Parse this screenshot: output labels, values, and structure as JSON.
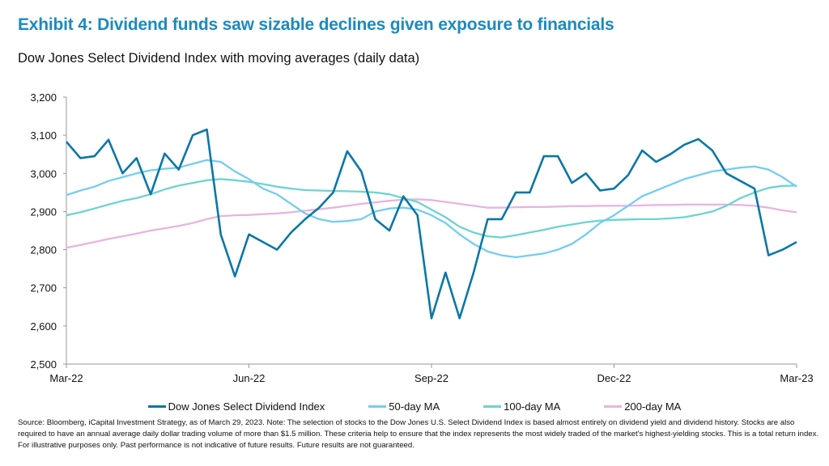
{
  "header": {
    "title": "Exhibit 4: Dividend funds saw sizable declines given exposure to financials",
    "subtitle": "Dow Jones Select Dividend Index with moving averages (daily data)"
  },
  "footnote": "Source: Bloomberg, iCapital Investment Strategy, as of March 29, 2023. Note: The selection of stocks to the Dow Jones U.S. Select Dividend Index is based almost entirely on dividend yield and dividend history. Stocks are also required to have an annual average daily dollar trading volume of more than $1.5 million. These criteria help to ensure that the index represents the most widely traded of the market's highest-yielding stocks. This is a total return index. For illustrative purposes only. Past performance is not indicative of future results. Future results are not guaranteed.",
  "chart_data": {
    "type": "line",
    "title": "",
    "xlabel": "",
    "ylabel": "",
    "ylim": [
      2500,
      3200
    ],
    "yticks": [
      "2,500",
      "2,600",
      "2,700",
      "2,800",
      "2,900",
      "3,000",
      "3,100",
      "3,200"
    ],
    "ytick_values": [
      2500,
      2600,
      2700,
      2800,
      2900,
      3000,
      3100,
      3200
    ],
    "xticks": [
      "Mar-22",
      "Jun-22",
      "Sep-22",
      "Dec-22",
      "Mar-23"
    ],
    "grid": false,
    "legend_position": "bottom",
    "x": [
      "2022-03-29",
      "2022-04-05",
      "2022-04-12",
      "2022-04-19",
      "2022-04-26",
      "2022-05-03",
      "2022-05-10",
      "2022-05-17",
      "2022-05-24",
      "2022-05-31",
      "2022-06-07",
      "2022-06-14",
      "2022-06-21",
      "2022-06-28",
      "2022-07-05",
      "2022-07-12",
      "2022-07-19",
      "2022-07-26",
      "2022-08-02",
      "2022-08-09",
      "2022-08-16",
      "2022-08-23",
      "2022-08-30",
      "2022-09-06",
      "2022-09-13",
      "2022-09-20",
      "2022-09-27",
      "2022-10-04",
      "2022-10-11",
      "2022-10-18",
      "2022-10-25",
      "2022-11-01",
      "2022-11-08",
      "2022-11-15",
      "2022-11-22",
      "2022-11-29",
      "2022-12-06",
      "2022-12-13",
      "2022-12-20",
      "2022-12-27",
      "2023-01-03",
      "2023-01-10",
      "2023-01-17",
      "2023-01-24",
      "2023-01-31",
      "2023-02-07",
      "2023-02-14",
      "2023-02-21",
      "2023-02-28",
      "2023-03-07",
      "2023-03-14",
      "2023-03-21",
      "2023-03-28"
    ],
    "series": [
      {
        "name": "Dow Jones Select Dividend Index",
        "color": "#0b77a6",
        "values": [
          3083,
          3040,
          3045,
          3088,
          3000,
          3040,
          2945,
          3052,
          3010,
          3100,
          3115,
          2839,
          2730,
          2840,
          2820,
          2800,
          2845,
          2880,
          2910,
          2950,
          3058,
          3005,
          2880,
          2850,
          2940,
          2890,
          2620,
          2740,
          2620,
          2740,
          2880,
          2880,
          2950,
          2950,
          3045,
          3045,
          2975,
          3000,
          2955,
          2960,
          2995,
          3060,
          3030,
          3050,
          3075,
          3090,
          3060,
          3000,
          2980,
          2960,
          2785,
          2800,
          2820
        ]
      },
      {
        "name": "50-day MA",
        "color": "#74cdf2",
        "values": [
          2943,
          2955,
          2965,
          2980,
          2990,
          3000,
          3008,
          3012,
          3015,
          3025,
          3035,
          3030,
          3005,
          2985,
          2960,
          2945,
          2920,
          2895,
          2880,
          2873,
          2875,
          2880,
          2900,
          2908,
          2910,
          2905,
          2890,
          2870,
          2840,
          2815,
          2795,
          2785,
          2780,
          2785,
          2790,
          2800,
          2815,
          2840,
          2870,
          2890,
          2915,
          2940,
          2955,
          2970,
          2985,
          2995,
          3005,
          3010,
          3015,
          3018,
          3010,
          2990,
          2965
        ]
      },
      {
        "name": "100-day MA",
        "color": "#6dd3cf",
        "values": [
          2890,
          2898,
          2908,
          2918,
          2928,
          2935,
          2945,
          2958,
          2968,
          2975,
          2982,
          2985,
          2982,
          2978,
          2972,
          2965,
          2960,
          2956,
          2955,
          2954,
          2953,
          2952,
          2950,
          2945,
          2935,
          2925,
          2905,
          2885,
          2860,
          2845,
          2835,
          2832,
          2838,
          2845,
          2852,
          2860,
          2866,
          2872,
          2876,
          2878,
          2879,
          2880,
          2880,
          2882,
          2885,
          2892,
          2900,
          2915,
          2935,
          2950,
          2962,
          2967,
          2968
        ]
      },
      {
        "name": "200-day MA",
        "color": "#e8b4df",
        "values": [
          2805,
          2812,
          2820,
          2828,
          2835,
          2842,
          2850,
          2856,
          2862,
          2870,
          2880,
          2888,
          2890,
          2891,
          2893,
          2895,
          2898,
          2902,
          2906,
          2910,
          2915,
          2920,
          2924,
          2928,
          2931,
          2932,
          2930,
          2925,
          2920,
          2915,
          2910,
          2910,
          2911,
          2912,
          2912,
          2913,
          2914,
          2914,
          2915,
          2915,
          2915,
          2916,
          2917,
          2917,
          2918,
          2918,
          2918,
          2918,
          2917,
          2915,
          2910,
          2903,
          2898
        ]
      }
    ]
  }
}
